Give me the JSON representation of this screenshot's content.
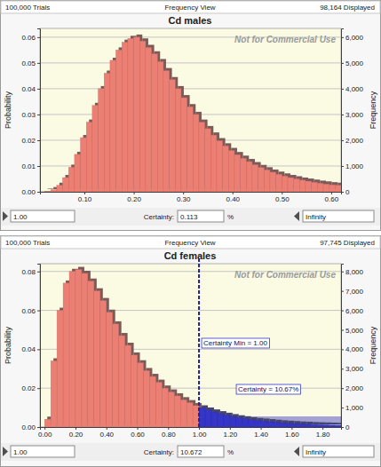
{
  "chart_data": [
    {
      "type": "histogram",
      "title": "Cd males",
      "trials": "100,000 Trials",
      "view": "Frequency View",
      "displayed": "98,164 Displayed",
      "watermark": "Not for Commercial Use",
      "ylabel": "Probability",
      "y2label": "Frequency",
      "bins": [
        0.02,
        0.032,
        0.044,
        0.056,
        0.068,
        0.08,
        0.092,
        0.104,
        0.116,
        0.128,
        0.14,
        0.152,
        0.164,
        0.176,
        0.188,
        0.2,
        0.212,
        0.224,
        0.236,
        0.248,
        0.26,
        0.272,
        0.284,
        0.296,
        0.308,
        0.32,
        0.332,
        0.344,
        0.356,
        0.368,
        0.38,
        0.392,
        0.404,
        0.416,
        0.428,
        0.44,
        0.452,
        0.464,
        0.476,
        0.488,
        0.5,
        0.512,
        0.524,
        0.536,
        0.548,
        0.56,
        0.572,
        0.584,
        0.596,
        0.608,
        0.62
      ],
      "values": [
        0.0002,
        0.0008,
        0.0025,
        0.0055,
        0.0095,
        0.0145,
        0.021,
        0.027,
        0.0335,
        0.04,
        0.046,
        0.051,
        0.055,
        0.058,
        0.0595,
        0.06,
        0.0585,
        0.056,
        0.0535,
        0.0505,
        0.047,
        0.0435,
        0.04,
        0.0365,
        0.033,
        0.03,
        0.027,
        0.0245,
        0.022,
        0.0198,
        0.0178,
        0.016,
        0.0144,
        0.013,
        0.0117,
        0.0105,
        0.0094,
        0.0085,
        0.0076,
        0.0068,
        0.0061,
        0.0055,
        0.005,
        0.0045,
        0.0041,
        0.0037,
        0.0033,
        0.003,
        0.0027,
        0.0025
      ],
      "color": "#ec7f74",
      "xlim": [
        0.01,
        0.62
      ],
      "xticks": [
        {
          "value": 0.1,
          "label": "0.10"
        },
        {
          "value": 0.2,
          "label": "0.20"
        },
        {
          "value": 0.3,
          "label": "0.30"
        },
        {
          "value": 0.4,
          "label": "0.40"
        },
        {
          "value": 0.5,
          "label": "0.50"
        },
        {
          "value": 0.6,
          "label": "0.60"
        }
      ],
      "ylim": [
        0,
        0.0634
      ],
      "yticks": [
        {
          "value": 0,
          "label": "0.00"
        },
        {
          "value": 0.01,
          "label": "0.01"
        },
        {
          "value": 0.02,
          "label": "0.02"
        },
        {
          "value": 0.03,
          "label": "0.03"
        },
        {
          "value": 0.04,
          "label": "0.04"
        },
        {
          "value": 0.05,
          "label": "0.05"
        },
        {
          "value": 0.06,
          "label": "0.06"
        }
      ],
      "y2lim": [
        0,
        6340
      ],
      "y2ticks": [
        0,
        {
          "value": 1000,
          "label": "1,000"
        },
        {
          "value": 2000,
          "label": "2,000"
        },
        {
          "value": 3000,
          "label": "3,000"
        },
        {
          "value": 4000,
          "label": "4,000"
        },
        {
          "value": 5000,
          "label": "5,000"
        },
        {
          "value": 6000,
          "label": "6,000"
        }
      ],
      "grid": true,
      "certainty_min": "1.00",
      "certainty_label": "Certainty:",
      "certainty": "0.113",
      "certainty_unit": "%",
      "certainty_max": "Infinity"
    },
    {
      "type": "histogram",
      "title": "Cd females",
      "trials": "100,000 Trials",
      "view": "Frequency View",
      "displayed": "97,745 Displayed",
      "watermark": "Not for Commercial Use",
      "ylabel": "Probability",
      "y2label": "Frequency",
      "bins": [
        0,
        0.04,
        0.08,
        0.12,
        0.16,
        0.2,
        0.24,
        0.28,
        0.32,
        0.36,
        0.4,
        0.44,
        0.48,
        0.52,
        0.56,
        0.6,
        0.64,
        0.68,
        0.72,
        0.76,
        0.8,
        0.84,
        0.88,
        0.92,
        0.96,
        1.0,
        1.04,
        1.08,
        1.12,
        1.16,
        1.2,
        1.24,
        1.28,
        1.32,
        1.36,
        1.4,
        1.44,
        1.48,
        1.52,
        1.56,
        1.6,
        1.64,
        1.68,
        1.72,
        1.76,
        1.8,
        1.84,
        1.88,
        1.92
      ],
      "values": [
        0.004,
        0.034,
        0.06,
        0.074,
        0.08,
        0.081,
        0.079,
        0.075,
        0.07,
        0.065,
        0.059,
        0.053,
        0.047,
        0.042,
        0.037,
        0.033,
        0.029,
        0.026,
        0.023,
        0.02,
        0.018,
        0.016,
        0.014,
        0.0125,
        0.011,
        0.0098,
        0.0087,
        0.0077,
        0.0068,
        0.006,
        0.0053,
        0.0047,
        0.0042,
        0.0037,
        0.0033,
        0.003,
        0.0027,
        0.0024,
        0.0021,
        0.0019,
        0.0017,
        0.0015,
        0.0014,
        0.0012,
        0.0011,
        0.001,
        0.0009,
        0.0008
      ],
      "colors": [
        "#ec7f74",
        "#ec7f74",
        "#ec7f74",
        "#ec7f74",
        "#ec7f74",
        "#ec7f74",
        "#ec7f74",
        "#ec7f74",
        "#ec7f74",
        "#ec7f74",
        "#ec7f74",
        "#ec7f74",
        "#ec7f74",
        "#ec7f74",
        "#ec7f74",
        "#ec7f74",
        "#ec7f74",
        "#ec7f74",
        "#ec7f74",
        "#ec7f74",
        "#ec7f74",
        "#ec7f74",
        "#ec7f74",
        "#ec7f74",
        "#ec7f74",
        "#3535c8",
        "#3535c8",
        "#3535c8",
        "#3535c8",
        "#3535c8",
        "#3535c8",
        "#3535c8",
        "#3535c8",
        "#3535c8",
        "#3535c8",
        "#3535c8",
        "#3535c8",
        "#3535c8",
        "#3535c8",
        "#3535c8",
        "#3535c8",
        "#3535c8",
        "#3535c8",
        "#3535c8",
        "#3535c8",
        "#3535c8",
        "#3535c8",
        "#3535c8"
      ],
      "threshold": 1.0,
      "annotations": [
        "Certainty Min = 1.00",
        "Certainty = 10.67%"
      ],
      "xlim": [
        -0.03,
        1.92
      ],
      "xticks": [
        {
          "value": 0,
          "label": "0.00"
        },
        {
          "value": 0.2,
          "label": "0.20"
        },
        {
          "value": 0.4,
          "label": "0.40"
        },
        {
          "value": 0.6,
          "label": "0.60"
        },
        {
          "value": 0.8,
          "label": "0.80"
        },
        {
          "value": 1.0,
          "label": "1.00"
        },
        {
          "value": 1.2,
          "label": "1.20"
        },
        {
          "value": 1.4,
          "label": "1.40"
        },
        {
          "value": 1.6,
          "label": "1.60"
        },
        {
          "value": 1.8,
          "label": "1.80"
        }
      ],
      "ylim": [
        0,
        0.084
      ],
      "yticks": [
        {
          "value": 0,
          "label": "0.00"
        },
        {
          "value": 0.02,
          "label": "0.02"
        },
        {
          "value": 0.04,
          "label": "0.04"
        },
        {
          "value": 0.06,
          "label": "0.06"
        },
        {
          "value": 0.08,
          "label": "0.08"
        }
      ],
      "y2lim": [
        0,
        8400
      ],
      "y2ticks": [
        0,
        {
          "value": 1000,
          "label": "1,000"
        },
        {
          "value": 2000,
          "label": "2,000"
        },
        {
          "value": 3000,
          "label": "3,000"
        },
        {
          "value": 4000,
          "label": "4,000"
        },
        {
          "value": 5000,
          "label": "5,000"
        },
        {
          "value": 6000,
          "label": "6,000"
        },
        {
          "value": 7000,
          "label": "7,000"
        },
        {
          "value": 8000,
          "label": "8,000"
        }
      ],
      "grid": true,
      "certainty_min": "1.00",
      "certainty_label": "Certainty:",
      "certainty": "10.672",
      "certainty_unit": "%",
      "certainty_max": "Infinity"
    }
  ]
}
